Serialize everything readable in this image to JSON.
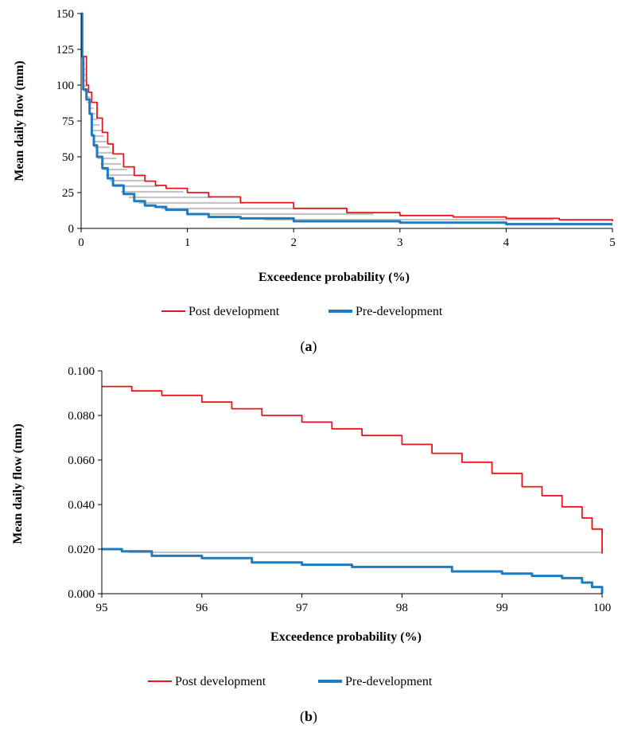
{
  "colors": {
    "post": "#e8141b",
    "pre": "#1f7bc0",
    "shading": "#c4c4c4",
    "axis": "#000000"
  },
  "chart_data": [
    {
      "type": "line",
      "panel_label": "a",
      "xlabel": "Exceedence probability (%)",
      "ylabel": "Mean daily flow (mm)",
      "xlim": [
        0,
        5
      ],
      "ylim": [
        0,
        150
      ],
      "xticks": [
        0,
        1,
        2,
        3,
        4,
        5
      ],
      "yticks": [
        0,
        25,
        50,
        75,
        100,
        125,
        150
      ],
      "ytick_decimals": 0,
      "grid": false,
      "legend_position": "bottom",
      "series": [
        {
          "name": "Post development",
          "color": "#e8141b",
          "x": [
            0.03,
            0.05,
            0.07,
            0.1,
            0.15,
            0.2,
            0.25,
            0.3,
            0.4,
            0.5,
            0.6,
            0.7,
            0.8,
            1.0,
            1.2,
            1.5,
            2.0,
            2.5,
            3.0,
            3.5,
            4.0,
            4.5,
            5.0
          ],
          "y": [
            120,
            100,
            95,
            88,
            77,
            67,
            59,
            52,
            43,
            37,
            33,
            30,
            28,
            25,
            22,
            18,
            14,
            11,
            9,
            8,
            7,
            6,
            5
          ]
        },
        {
          "name": "Pre-development",
          "color": "#1f7bc0",
          "x": [
            0.0,
            0.01,
            0.02,
            0.05,
            0.08,
            0.1,
            0.12,
            0.15,
            0.2,
            0.25,
            0.3,
            0.4,
            0.5,
            0.6,
            0.7,
            0.8,
            1.0,
            1.2,
            1.5,
            2.0,
            3.0,
            4.0,
            5.0
          ],
          "y": [
            150,
            120,
            97,
            90,
            80,
            65,
            58,
            50,
            42,
            35,
            30,
            24,
            19,
            16,
            15,
            13,
            10,
            8,
            7,
            5,
            4,
            3,
            3
          ]
        }
      ]
    },
    {
      "type": "line",
      "panel_label": "b",
      "xlabel": "Exceedence probability (%)",
      "ylabel": "Mean daily flow (mm)",
      "xlim": [
        95,
        100
      ],
      "ylim": [
        0,
        0.1
      ],
      "xticks": [
        95,
        96,
        97,
        98,
        99,
        100
      ],
      "yticks": [
        0,
        0.02,
        0.04,
        0.06,
        0.08,
        0.1
      ],
      "ytick_decimals": 3,
      "grid": false,
      "legend_position": "bottom",
      "series": [
        {
          "name": "Post development",
          "color": "#e8141b",
          "x": [
            95.0,
            95.3,
            95.6,
            96.0,
            96.3,
            96.6,
            97.0,
            97.3,
            97.6,
            98.0,
            98.3,
            98.6,
            98.9,
            99.2,
            99.4,
            99.6,
            99.8,
            99.9,
            100.0
          ],
          "y": [
            0.093,
            0.091,
            0.089,
            0.086,
            0.083,
            0.08,
            0.077,
            0.074,
            0.071,
            0.067,
            0.063,
            0.059,
            0.054,
            0.048,
            0.044,
            0.039,
            0.034,
            0.029,
            0.018
          ]
        },
        {
          "name": "Pre-development",
          "color": "#1f7bc0",
          "x": [
            95.0,
            95.2,
            95.5,
            96.0,
            96.5,
            97.0,
            97.5,
            98.0,
            98.5,
            99.0,
            99.3,
            99.6,
            99.8,
            99.9,
            100.0
          ],
          "y": [
            0.02,
            0.019,
            0.017,
            0.016,
            0.014,
            0.013,
            0.012,
            0.012,
            0.01,
            0.009,
            0.008,
            0.007,
            0.005,
            0.003,
            0.0
          ]
        }
      ]
    }
  ]
}
